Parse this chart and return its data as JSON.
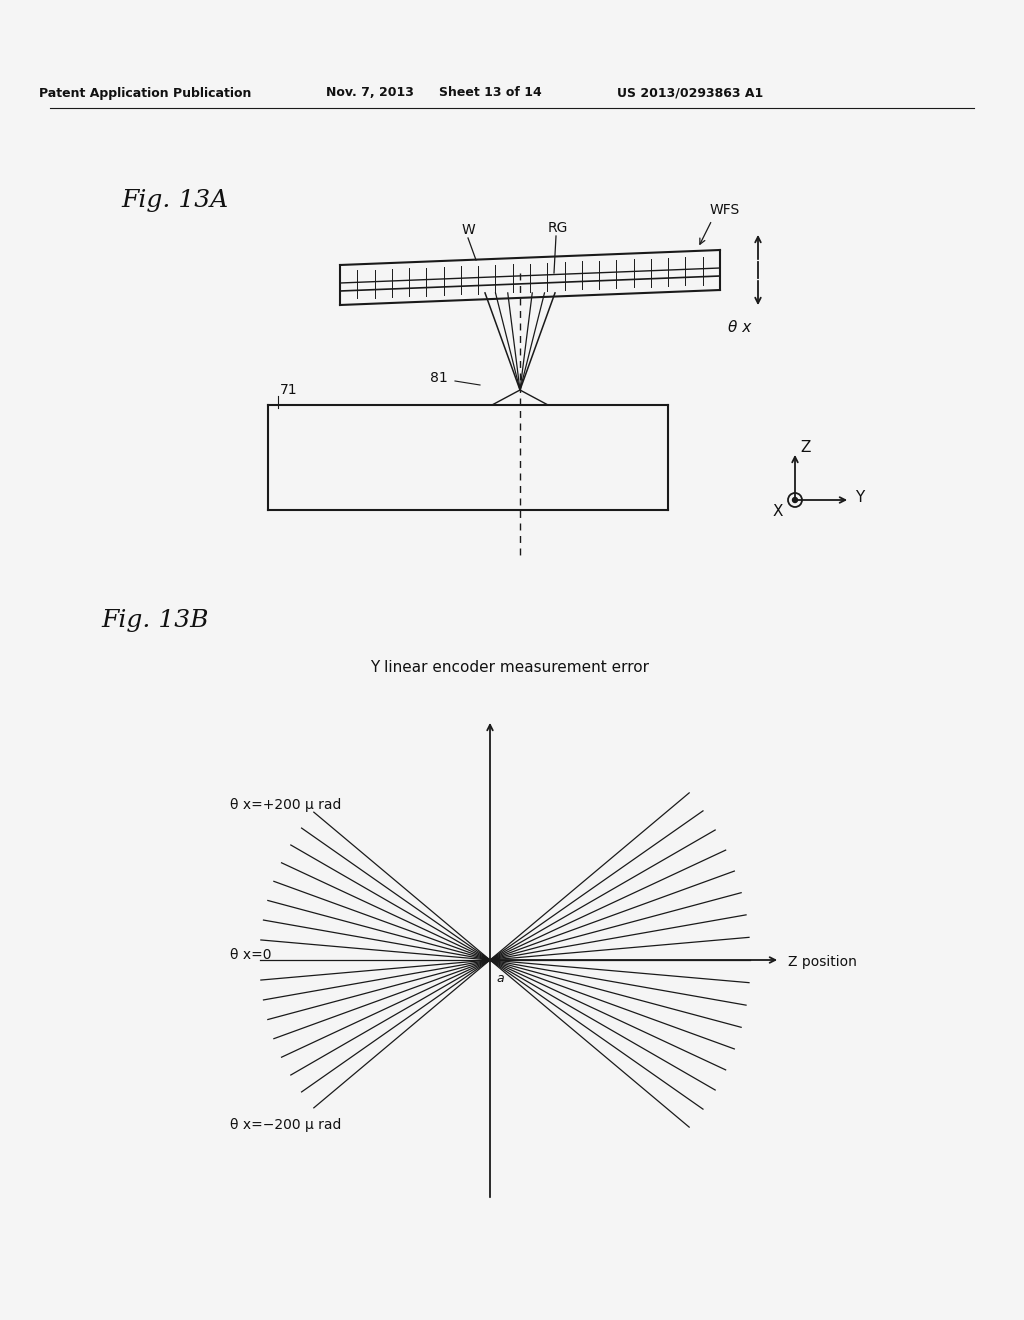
{
  "bg_color": "#f5f5f5",
  "header_text": "Patent Application Publication",
  "header_date": "Nov. 7, 2013",
  "header_sheet": "Sheet 13 of 14",
  "header_patent": "US 2013/0293863 A1",
  "fig13a_label": "Fig. 13A",
  "fig13b_label": "Fig. 13B",
  "fig13b_title": "Y linear encoder measurement error",
  "label_theta_plus": "θ x=+200 μ rad",
  "label_theta_zero": "θ x=0",
  "label_theta_minus": "θ x=−200 μ rad",
  "label_z_position": "Z position",
  "label_WFS": "WFS",
  "label_W": "W",
  "label_RG": "RG",
  "label_71": "71",
  "label_81": "81",
  "label_theta_x": "θ x",
  "label_Z": "Z",
  "label_Y": "Y",
  "label_X": "X",
  "label_a": "a",
  "n_lines": 17,
  "line_color": "#1a1a1a",
  "text_color": "#111111"
}
